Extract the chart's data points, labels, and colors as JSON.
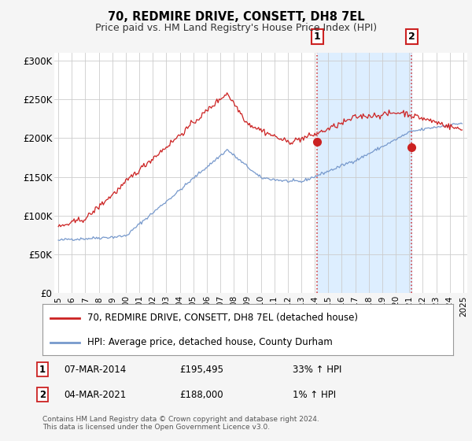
{
  "title": "70, REDMIRE DRIVE, CONSETT, DH8 7EL",
  "subtitle": "Price paid vs. HM Land Registry's House Price Index (HPI)",
  "ylim": [
    0,
    310000
  ],
  "yticks": [
    0,
    50000,
    100000,
    150000,
    200000,
    250000,
    300000
  ],
  "ytick_labels": [
    "£0",
    "£50K",
    "£100K",
    "£150K",
    "£200K",
    "£250K",
    "£300K"
  ],
  "x_start_year": 1995,
  "x_end_year": 2025,
  "line1_color": "#cc2222",
  "line2_color": "#7799cc",
  "line1_label": "70, REDMIRE DRIVE, CONSETT, DH8 7EL (detached house)",
  "line2_label": "HPI: Average price, detached house, County Durham",
  "marker1_date": "07-MAR-2014",
  "marker1_price": 195495,
  "marker1_text": "33% ↑ HPI",
  "marker1_label": "1",
  "marker1_year": 2014.17,
  "marker2_date": "04-MAR-2021",
  "marker2_price": 188000,
  "marker2_text": "1% ↑ HPI",
  "marker2_label": "2",
  "marker2_year": 2021.17,
  "vline_color": "#cc2222",
  "shade_color": "#ddeeff",
  "footer_text": "Contains HM Land Registry data © Crown copyright and database right 2024.\nThis data is licensed under the Open Government Licence v3.0.",
  "background_color": "#f5f5f5",
  "plot_background": "#ffffff",
  "grid_color": "#cccccc"
}
